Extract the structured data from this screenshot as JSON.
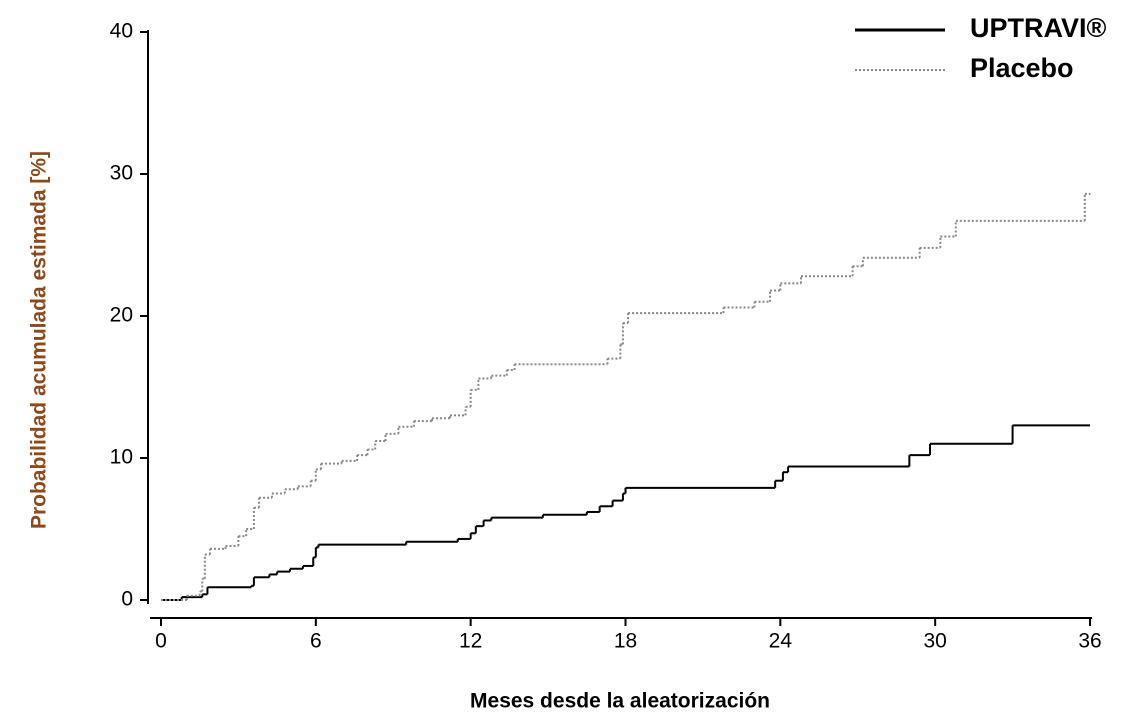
{
  "chart_data": {
    "type": "line",
    "drawstyle": "steps-post",
    "xlabel": "Meses desde la aleatorización",
    "ylabel": "Probabilidad acumulada estimada [%]",
    "xlim": [
      0,
      36
    ],
    "ylim": [
      0,
      40
    ],
    "xticks": [
      0,
      6,
      12,
      18,
      24,
      30,
      36
    ],
    "yticks": [
      0,
      10,
      20,
      30,
      40
    ],
    "legend": "upper right",
    "series": [
      {
        "name": "UPTRAVI®",
        "color": "#000000",
        "style": "solid",
        "x": [
          0,
          0.8,
          1.6,
          1.8,
          3.5,
          3.6,
          4.2,
          4.5,
          5,
          5.5,
          5.9,
          6.0,
          6.1,
          9.5,
          11.5,
          12.0,
          12.2,
          12.5,
          12.8,
          14.8,
          16.5,
          17,
          17.5,
          17.9,
          18,
          23.8,
          24.1,
          24.3,
          29,
          29.8,
          33,
          36
        ],
        "values": [
          0,
          0.2,
          0.4,
          0.9,
          1.0,
          1.6,
          1.8,
          2.0,
          2.2,
          2.4,
          3.0,
          3.7,
          3.9,
          4.1,
          4.3,
          4.7,
          5.2,
          5.6,
          5.8,
          6.0,
          6.2,
          6.6,
          7.0,
          7.5,
          7.9,
          8.4,
          9.0,
          9.4,
          10.2,
          11.0,
          12.3,
          12.3
        ]
      },
      {
        "name": "Placebo",
        "color": "#888888",
        "style": "dotted",
        "x": [
          0,
          1,
          1.5,
          1.6,
          1.7,
          1.9,
          2.5,
          3,
          3.3,
          3.6,
          3.8,
          4.3,
          4.8,
          5.3,
          5.8,
          6.0,
          6.2,
          7.0,
          7.6,
          8.0,
          8.3,
          8.7,
          9.2,
          9.8,
          10.5,
          11.2,
          11.8,
          12.0,
          12.3,
          12.8,
          13.4,
          13.7,
          17.3,
          17.8,
          17.9,
          18.1,
          21.8,
          23,
          23.6,
          24,
          24.8,
          26.8,
          27.2,
          29.4,
          30.2,
          30.8,
          35.8,
          36
        ],
        "values": [
          0,
          0.3,
          0.6,
          1.5,
          3.2,
          3.6,
          3.8,
          4.5,
          5.0,
          6.5,
          7.2,
          7.5,
          7.8,
          8.0,
          8.4,
          9.2,
          9.6,
          9.8,
          10.2,
          10.6,
          11.2,
          11.7,
          12.2,
          12.6,
          12.8,
          13.0,
          13.6,
          14.8,
          15.6,
          15.8,
          16.2,
          16.6,
          17.0,
          18.0,
          19.5,
          20.2,
          20.6,
          21.0,
          21.8,
          22.3,
          22.8,
          23.5,
          24.1,
          24.8,
          25.6,
          26.7,
          28.6,
          28.6
        ]
      }
    ]
  }
}
